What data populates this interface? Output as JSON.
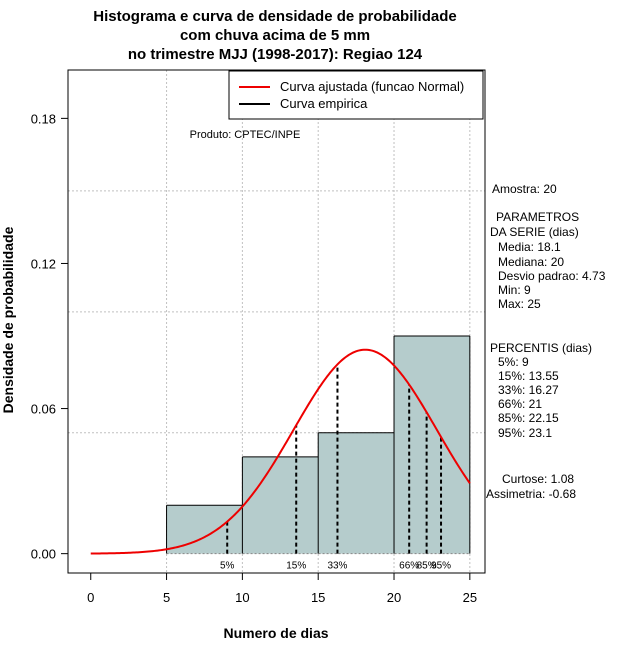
{
  "chart_data": {
    "type": "bar",
    "title_lines": [
      "Histograma e curva de densidade de probabilidade",
      "com chuva acima de 5 mm",
      "no trimestre MJJ (1998-2017): Regiao 124"
    ],
    "xlabel": "Numero de dias",
    "ylabel": "Densidade de probabilidade",
    "xlim": [
      -1.5,
      26.0
    ],
    "ylim": [
      -0.008,
      0.2
    ],
    "x_ticks": [
      0,
      5,
      10,
      15,
      20,
      25
    ],
    "x_tick_labels": [
      "0",
      "5",
      "10",
      "15",
      "20",
      "25"
    ],
    "y_ticks": [
      0.0,
      0.06,
      0.12,
      0.18
    ],
    "y_tick_labels": [
      "0.00",
      "0.06",
      "0.12",
      "0.18"
    ],
    "grid": true,
    "grid_x": [
      5,
      10,
      15,
      20,
      25
    ],
    "grid_y": [
      0.05,
      0.1,
      0.15
    ],
    "bins": [
      {
        "x0": 5,
        "x1": 10,
        "density": 0.02
      },
      {
        "x0": 10,
        "x1": 15,
        "density": 0.04
      },
      {
        "x0": 15,
        "x1": 20,
        "density": 0.05
      },
      {
        "x0": 20,
        "x1": 25,
        "density": 0.09
      }
    ],
    "normal_curve": {
      "mean": 18.1,
      "sd": 4.73,
      "x_range": [
        0,
        25
      ]
    },
    "percentile_lines": [
      {
        "x": 9,
        "label": "5%"
      },
      {
        "x": 13.55,
        "label": "15%"
      },
      {
        "x": 16.27,
        "label": "33%"
      },
      {
        "x": 21,
        "label": "66%"
      },
      {
        "x": 22.15,
        "label": "85%"
      },
      {
        "x": 23.1,
        "label": "95%"
      }
    ],
    "legend": {
      "placement": "top-right",
      "entries": [
        {
          "label": "Curva ajustada (funcao Normal)",
          "color": "#ee0000"
        },
        {
          "label": "Curva empirica",
          "color": "#000000"
        }
      ]
    },
    "annotation": "Produto: CPTEC/INPE",
    "colors": {
      "bar_fill": "#b5cccc",
      "curve": "#ee0000",
      "grid": "#c0c0c0"
    }
  },
  "stats_panel": {
    "amostra": "Amostra: 20",
    "parametros": [
      "PARAMETROS",
      "DA SERIE (dias)",
      "Media: 18.1",
      "Mediana: 20",
      "Desvio padrao: 4.73",
      "Min: 9",
      "Max: 25"
    ],
    "percentis": [
      "PERCENTIS (dias)",
      "5%: 9",
      "15%: 13.55",
      "33%: 16.27",
      "66%: 21",
      "85%: 22.15",
      "95%: 23.1"
    ],
    "shape": [
      "Curtose: 1.08",
      "Assimetria: -0.68"
    ]
  }
}
